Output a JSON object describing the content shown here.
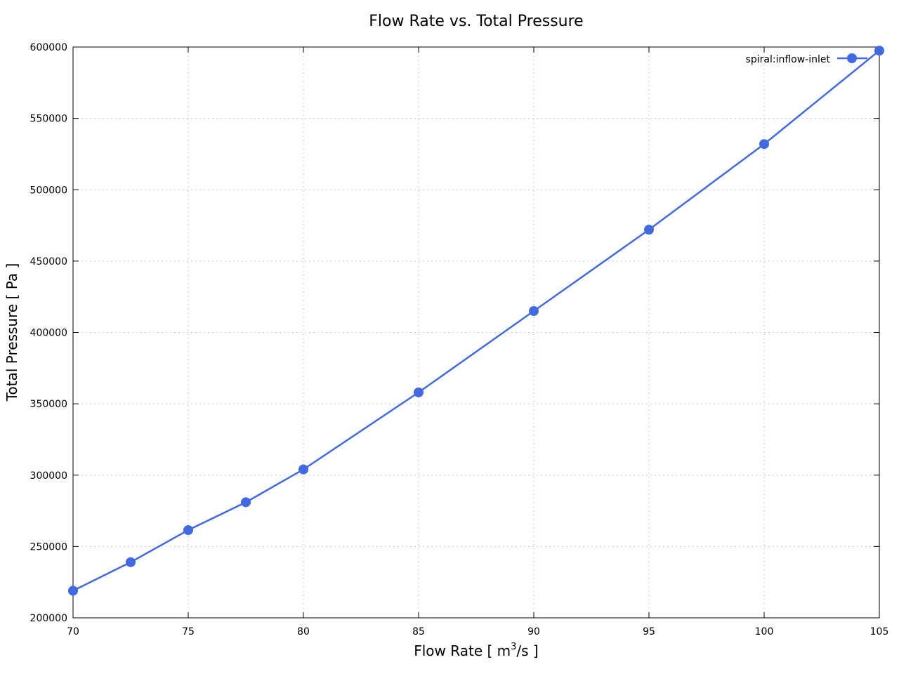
{
  "chart_data": {
    "type": "line",
    "title": "Flow Rate vs. Total Pressure",
    "xlabel": "Flow Rate [ m",
    "xlabel_sup": "3",
    "xlabel_suffix": "/s ]",
    "ylabel": "Total Pressure [ Pa ]",
    "xlim": [
      70,
      105
    ],
    "ylim": [
      200000,
      600000
    ],
    "x_ticks": [
      70,
      75,
      80,
      85,
      90,
      95,
      100,
      105
    ],
    "y_ticks": [
      200000,
      250000,
      300000,
      350000,
      400000,
      450000,
      500000,
      550000,
      600000
    ],
    "grid": true,
    "legend_position": "top-right",
    "series": [
      {
        "name": "spiral:inflow-inlet",
        "color": "#4169e1",
        "marker": "circle",
        "x": [
          70,
          72.5,
          75,
          77.5,
          80,
          85,
          90,
          95,
          100,
          105
        ],
        "y": [
          219000,
          239000,
          261500,
          281000,
          304000,
          358000,
          415000,
          472000,
          532000,
          597500
        ]
      }
    ]
  }
}
